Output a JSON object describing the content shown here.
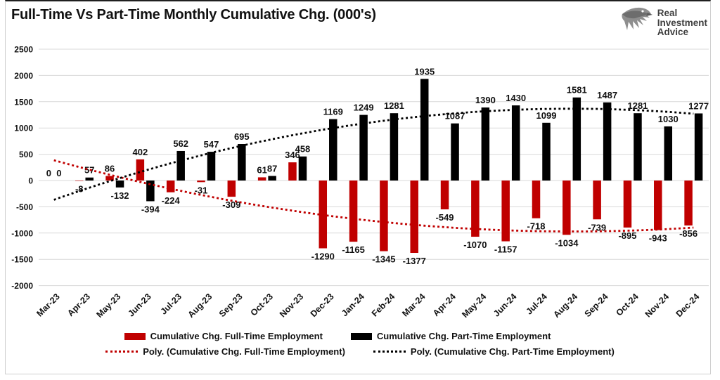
{
  "title": "Full-Time Vs Part-Time Monthly Cumulative Chg. (000's)",
  "logo": {
    "lines": [
      "Real",
      "Investment",
      "Advice"
    ]
  },
  "colors": {
    "full_time": "#C00000",
    "part_time": "#000000",
    "gridline": "#D9D9D9",
    "axis_text": "#111111"
  },
  "chart_data": {
    "type": "bar",
    "title": "Full-Time Vs Part-Time Monthly Cumulative Chg. (000's)",
    "categories": [
      "Mar-23",
      "Apr-23",
      "May-23",
      "Jun-23",
      "Jul-23",
      "Aug-23",
      "Sep-23",
      "Oct-23",
      "Nov-23",
      "Dec-23",
      "Jan-24",
      "Feb-24",
      "Mar-24",
      "Apr-24",
      "May-24",
      "Jun-24",
      "Jul-24",
      "Aug-24",
      "Sep-24",
      "Oct-24",
      "Nov-24",
      "Dec-24"
    ],
    "series": [
      {
        "name": "Cumulative Chg. Full-Time Employment",
        "color": "#C00000",
        "values": [
          0,
          -8,
          86,
          402,
          -224,
          -31,
          -309,
          61,
          346,
          -1290,
          -1165,
          -1345,
          -1377,
          -549,
          -1070,
          -1157,
          -718,
          -1034,
          -739,
          -895,
          -943,
          -856
        ]
      },
      {
        "name": "Cumulative Chg. Part-Time Employment",
        "color": "#000000",
        "values": [
          0,
          57,
          -132,
          -394,
          562,
          547,
          695,
          87,
          458,
          1169,
          1249,
          1281,
          1935,
          1087,
          1390,
          1430,
          1099,
          1581,
          1487,
          1281,
          1030,
          1277
        ]
      }
    ],
    "trendlines": [
      {
        "name": "Poly. (Cumulative Chg. Full-Time Employment)",
        "series_index": 0,
        "type": "polynomial",
        "order": 2,
        "color": "#C00000",
        "style": "dotted"
      },
      {
        "name": "Poly. (Cumulative Chg. Part-Time Employment)",
        "series_index": 1,
        "type": "polynomial",
        "order": 2,
        "color": "#000000",
        "style": "dotted"
      }
    ],
    "ylim": [
      -2000,
      2500
    ],
    "yticks": [
      2500,
      2000,
      1500,
      1000,
      500,
      0,
      -500,
      -1000,
      -1500,
      -2000
    ],
    "grid": true,
    "data_labels": true,
    "legend_position": "bottom"
  },
  "legend": {
    "items": [
      {
        "label": "Cumulative Chg. Full-Time Employment",
        "swatch": "bar",
        "color": "#C00000"
      },
      {
        "label": "Cumulative Chg. Part-Time Employment",
        "swatch": "bar",
        "color": "#000000"
      },
      {
        "label": "Poly. (Cumulative Chg. Full-Time Employment)",
        "swatch": "dotted-line",
        "color": "#C00000"
      },
      {
        "label": "Poly. (Cumulative Chg. Part-Time Employment)",
        "swatch": "dotted-line",
        "color": "#000000"
      }
    ]
  }
}
